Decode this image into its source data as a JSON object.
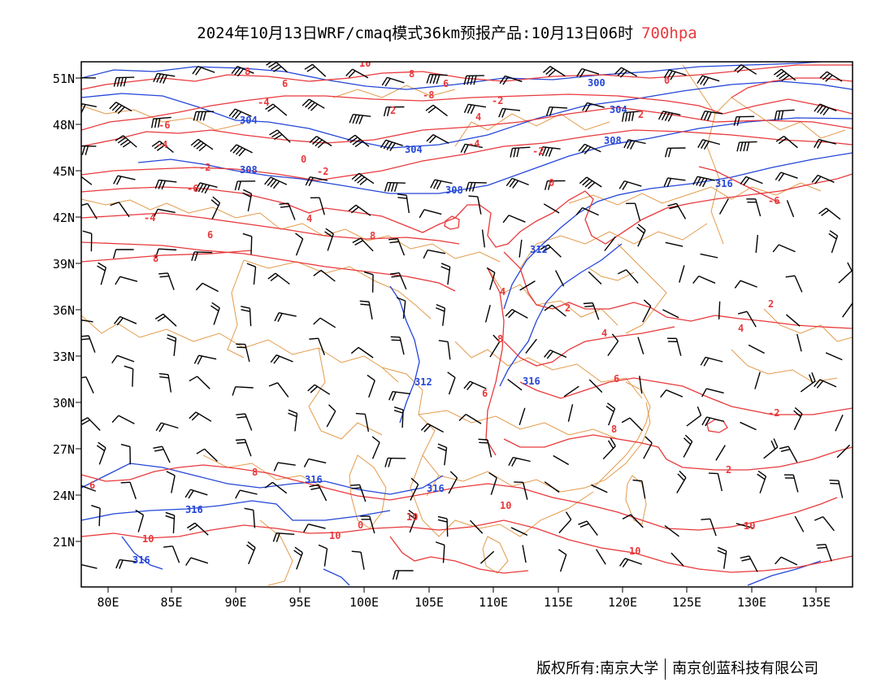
{
  "title": {
    "main": "2024年10月13日WRF/cmaq模式36km预报产品:10月13日06时",
    "level": "700hpa"
  },
  "colors": {
    "temperature": "#e8393c",
    "height": "#2446d8",
    "border": "#e39a4a",
    "wind": "#000000"
  },
  "axes": {
    "lon_labels": [
      "80E",
      "85E",
      "90E",
      "95E",
      "100E",
      "105E",
      "110E",
      "115E",
      "120E",
      "125E",
      "130E",
      "135E"
    ],
    "lat_labels": [
      "51N",
      "48N",
      "45N",
      "42N",
      "39N",
      "36N",
      "33N",
      "30N",
      "27N",
      "24N",
      "21N"
    ]
  },
  "temp_labels": [
    "10",
    "8",
    "6",
    "6",
    "4",
    "2",
    "0",
    "-2",
    "-4",
    "-6",
    "8",
    "2",
    "-4",
    "-2",
    "0",
    "-2",
    "-6",
    "-4",
    "-2",
    "-8",
    "-4",
    "-6",
    "-8",
    "4",
    "6",
    "8",
    "8",
    "8",
    "6",
    "8",
    "10",
    "10",
    "10",
    "10",
    "0",
    "2",
    "4",
    "6",
    "2",
    "4",
    "4",
    "8",
    "0",
    "-2",
    "2"
  ],
  "height_labels": [
    "300",
    "304",
    "304",
    "304",
    "308",
    "308",
    "308",
    "312",
    "312",
    "316",
    "316",
    "316",
    "316",
    "316",
    "316"
  ],
  "footer": {
    "copyright": "版权所有:南京大学",
    "company": "南京创蓝科技有限公司"
  }
}
